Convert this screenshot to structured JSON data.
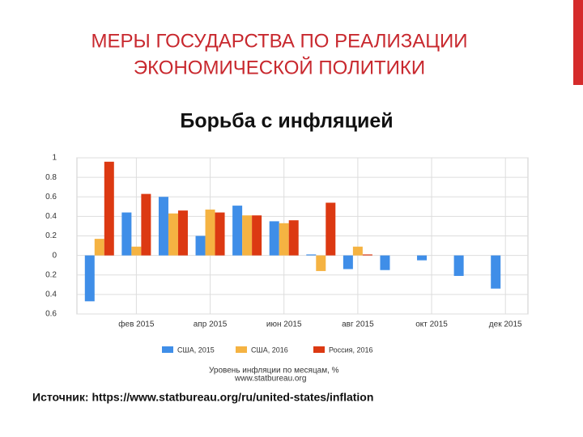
{
  "slide": {
    "title": [
      "МЕРЫ ГОСУДАРСТВА ПО РЕАЛИЗАЦИИ",
      "ЭКОНОМИЧЕСКОЙ ПОЛИТИКИ"
    ],
    "source": "Источник: https://www.statbureau.org/ru/united-states/inflation"
  },
  "chart_data": {
    "type": "bar",
    "title": "Борьба с инфляцией",
    "caption": [
      "Уровень инфляции по месяцам, %",
      "www.statbureau.org"
    ],
    "categories": [
      null,
      "фев 2015",
      null,
      "апр 2015",
      null,
      "июн 2015",
      null,
      "авг 2015",
      null,
      "окт 2015",
      null,
      "дек 2015"
    ],
    "series": [
      {
        "name": "США, 2015",
        "color": "#3f8ee8",
        "values": [
          -0.47,
          0.44,
          0.6,
          0.2,
          0.51,
          0.35,
          0.01,
          -0.14,
          -0.15,
          -0.05,
          -0.21,
          -0.34
        ]
      },
      {
        "name": "США, 2016",
        "color": "#f5b342",
        "values": [
          0.17,
          0.09,
          0.43,
          0.47,
          0.41,
          0.33,
          -0.16,
          0.09,
          null,
          null,
          null,
          null
        ]
      },
      {
        "name": "Россия, 2016",
        "color": "#dc3912",
        "values": [
          0.96,
          0.63,
          0.46,
          0.44,
          0.41,
          0.36,
          0.54,
          0.01,
          null,
          null,
          null,
          null
        ]
      }
    ],
    "ylim": [
      -0.6,
      1
    ],
    "yticks": [
      {
        "value": -0.6,
        "label": "0.6"
      },
      {
        "value": -0.4,
        "label": "0.4"
      },
      {
        "value": -0.2,
        "label": "0.2"
      },
      0,
      0.2,
      0.4,
      0.6,
      0.8,
      1
    ],
    "grid": true,
    "legend": "bottom"
  }
}
